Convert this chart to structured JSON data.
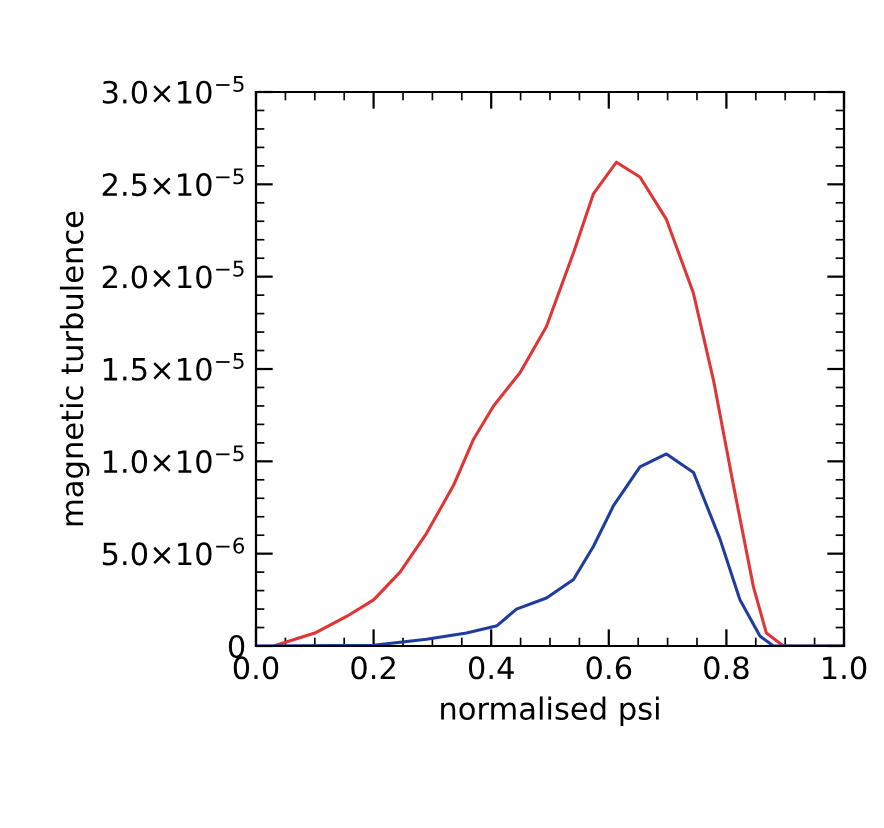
{
  "chart_data": {
    "type": "line",
    "xlabel": "normalised psi",
    "ylabel": "magnetic turbulence",
    "xlim": [
      0.0,
      1.0
    ],
    "ylim": [
      0,
      3e-05
    ],
    "xticks": [
      {
        "value": 0.0,
        "label": "0.0"
      },
      0.2,
      0.4,
      0.6,
      0.8,
      {
        "value": 1.0,
        "label": "1.0"
      }
    ],
    "yticks": [
      {
        "value": 0,
        "label": "0"
      },
      {
        "value": 5e-06,
        "label": "5.0×10$^{−6}$"
      },
      {
        "value": 1e-05,
        "label": "1.0×10$^{−5}$"
      },
      {
        "value": 1.5e-05,
        "label": "1.5×10$^{−5}$"
      },
      {
        "value": 2e-05,
        "label": "2.0×10$^{−5}$"
      },
      {
        "value": 2.5e-05,
        "label": "2.5×10$^{−5}$"
      },
      {
        "value": 3e-05,
        "label": "3.0×10$^{−5}$"
      }
    ],
    "grid": false,
    "legend": false,
    "series": [
      {
        "color": "#e03535",
        "x": [
          0.03,
          0.1,
          0.154,
          0.2,
          0.245,
          0.29,
          0.336,
          0.37,
          0.404,
          0.449,
          0.494,
          0.54,
          0.574,
          0.613,
          0.653,
          0.698,
          0.744,
          0.778,
          0.812,
          0.846,
          0.868,
          0.897,
          1.0
        ],
        "values": [
          0,
          7e-07,
          1.6e-06,
          2.5e-06,
          4e-06,
          6.1e-06,
          8.7e-06,
          1.12e-05,
          1.3e-05,
          1.48e-05,
          1.73e-05,
          2.13e-05,
          2.45e-05,
          2.62e-05,
          2.54e-05,
          2.31e-05,
          1.91e-05,
          1.44e-05,
          8.7e-06,
          3.2e-06,
          7e-07,
          0,
          0
        ]
      },
      {
        "color": "#1f3d9c",
        "x": [
          0.0,
          0.2,
          0.29,
          0.358,
          0.41,
          0.443,
          0.494,
          0.54,
          0.574,
          0.608,
          0.653,
          0.698,
          0.744,
          0.789,
          0.823,
          0.857,
          0.88,
          1.0
        ],
        "values": [
          0,
          4e-08,
          3.6e-07,
          7e-07,
          1.1e-06,
          2e-06,
          2.6e-06,
          3.6e-06,
          5.4e-06,
          7.6e-06,
          9.7e-06,
          1.04e-05,
          9.4e-06,
          5.8e-06,
          2.5e-06,
          5.4e-07,
          0,
          0
        ]
      }
    ]
  }
}
